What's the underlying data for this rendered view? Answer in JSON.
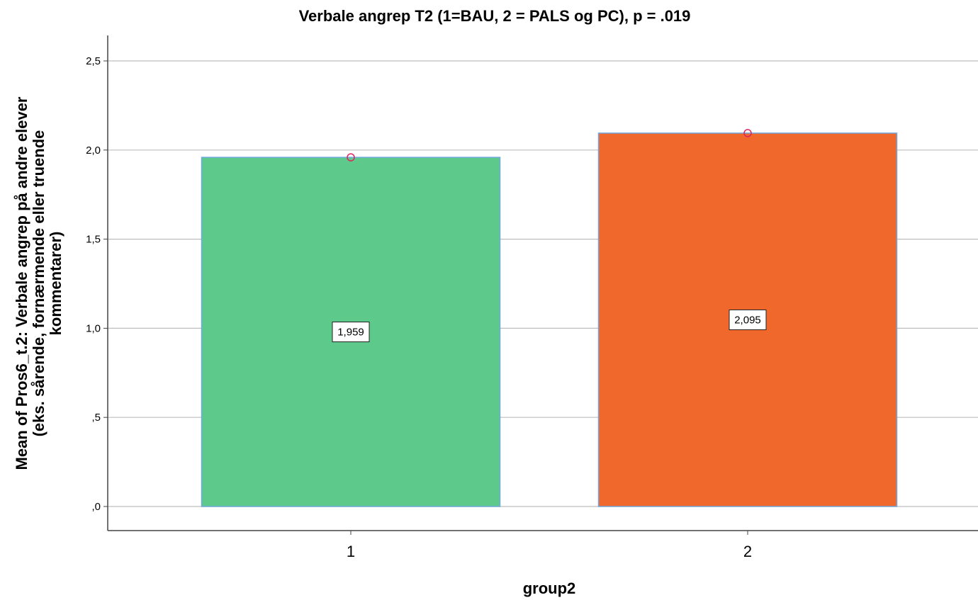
{
  "chart_data": {
    "type": "bar",
    "title": "Verbale angrep T2 (1=BAU, 2 = PALS og PC), p = .019",
    "xlabel": "group2",
    "ylabel_lines": [
      "Mean of Pros6_t.2: Verbale angrep på andre elever",
      "(eks. sårende, fornærmende eller truende",
      "kommentarer)"
    ],
    "categories": [
      "1",
      "2"
    ],
    "values": [
      1.959,
      2.095
    ],
    "data_labels": [
      "1,959",
      "2,095"
    ],
    "bar_colors": [
      "#5dc98b",
      "#f1682d"
    ],
    "bar_border_color": "#6fa8dc",
    "marker_color": "#e0245e",
    "ylim": [
      0,
      2.6
    ],
    "yticks": [
      0,
      0.5,
      1.0,
      1.5,
      2.0,
      2.5
    ],
    "ytick_labels": [
      ",0",
      ",5",
      "1,0",
      "1,5",
      "2,0",
      "2,5"
    ],
    "grid": true,
    "legend": "none"
  }
}
